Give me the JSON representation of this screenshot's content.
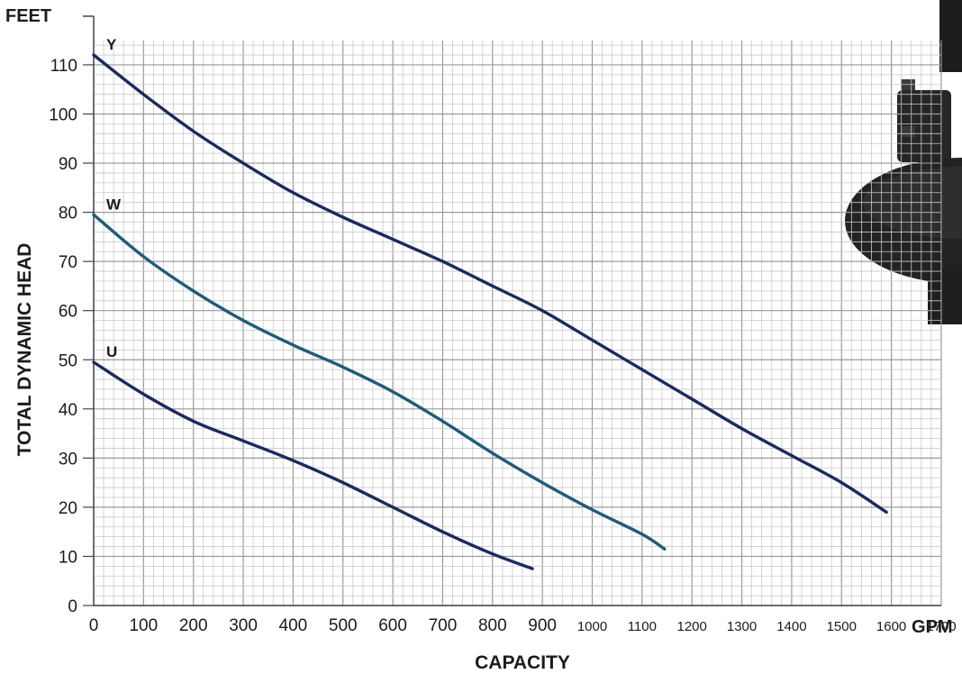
{
  "chart_data": {
    "type": "line",
    "ylabel": "TOTAL DYNAMIC HEAD",
    "yunit": "FEET",
    "xlabel": "CAPACITY",
    "xunit": "GPM",
    "xlim": [
      0,
      1700
    ],
    "ylim": [
      0,
      115
    ],
    "grid": true,
    "x_ticks": [
      "0",
      "100",
      "200",
      "300",
      "400",
      "500",
      "600",
      "700",
      "800",
      "900",
      "1000",
      "1100",
      "1200",
      "1300",
      "1400",
      "1500",
      "1600",
      "1700"
    ],
    "y_ticks": [
      "0",
      "10",
      "20",
      "30",
      "40",
      "50",
      "60",
      "70",
      "80",
      "90",
      "100",
      "110"
    ],
    "series": [
      {
        "name": "Y",
        "color": "#1b2a5e",
        "points": [
          [
            0,
            112
          ],
          [
            100,
            104
          ],
          [
            200,
            96.5
          ],
          [
            300,
            90
          ],
          [
            400,
            84
          ],
          [
            500,
            79
          ],
          [
            600,
            74.5
          ],
          [
            700,
            70
          ],
          [
            800,
            65
          ],
          [
            900,
            60
          ],
          [
            1000,
            54
          ],
          [
            1100,
            48
          ],
          [
            1200,
            42
          ],
          [
            1300,
            36
          ],
          [
            1400,
            30.5
          ],
          [
            1500,
            25
          ],
          [
            1590,
            19
          ]
        ]
      },
      {
        "name": "W",
        "color": "#1f5c78",
        "points": [
          [
            0,
            79.5
          ],
          [
            100,
            71
          ],
          [
            200,
            64
          ],
          [
            300,
            58
          ],
          [
            400,
            53
          ],
          [
            500,
            48.5
          ],
          [
            600,
            43.5
          ],
          [
            700,
            37.5
          ],
          [
            800,
            31
          ],
          [
            900,
            25
          ],
          [
            1000,
            19.5
          ],
          [
            1100,
            14.5
          ],
          [
            1145,
            11.5
          ]
        ]
      },
      {
        "name": "U",
        "color": "#1b2a5e",
        "points": [
          [
            0,
            49.5
          ],
          [
            100,
            43
          ],
          [
            200,
            37.5
          ],
          [
            300,
            33.5
          ],
          [
            400,
            29.5
          ],
          [
            500,
            25
          ],
          [
            600,
            20
          ],
          [
            700,
            15
          ],
          [
            800,
            10.5
          ],
          [
            880,
            7.5
          ]
        ]
      }
    ]
  }
}
